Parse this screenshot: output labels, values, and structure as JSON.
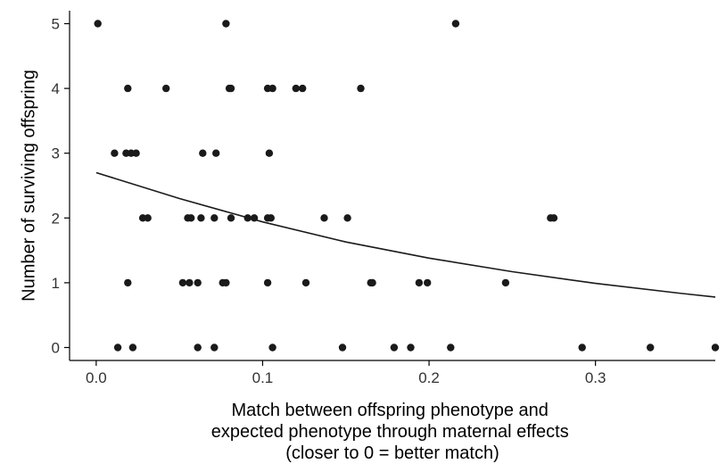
{
  "chart_data": {
    "type": "scatter",
    "title": "",
    "xlabel_lines": [
      "Match between offspring phenotype and",
      "expected phenotype through maternal effects",
      "(closer to 0 = better match)"
    ],
    "ylabel": "Number of surviving offspring",
    "xlim": [
      -0.016,
      0.372
    ],
    "ylim": [
      -0.2,
      5.2
    ],
    "xticks": [
      0.0,
      0.1,
      0.2,
      0.3
    ],
    "xtick_labels": [
      "0.0",
      "0.1",
      "0.2",
      "0.3"
    ],
    "yticks": [
      0,
      1,
      2,
      3,
      4,
      5
    ],
    "ytick_labels": [
      "0",
      "1",
      "2",
      "3",
      "4",
      "5"
    ],
    "grid": false,
    "legend": "none",
    "point_color": "#1a1a1a",
    "line_color": "#1a1a1a",
    "points": [
      {
        "x": 0.001,
        "y": 5
      },
      {
        "x": 0.078,
        "y": 5
      },
      {
        "x": 0.216,
        "y": 5
      },
      {
        "x": 0.019,
        "y": 4
      },
      {
        "x": 0.042,
        "y": 4
      },
      {
        "x": 0.08,
        "y": 4
      },
      {
        "x": 0.081,
        "y": 4
      },
      {
        "x": 0.103,
        "y": 4
      },
      {
        "x": 0.106,
        "y": 4
      },
      {
        "x": 0.12,
        "y": 4
      },
      {
        "x": 0.124,
        "y": 4
      },
      {
        "x": 0.159,
        "y": 4
      },
      {
        "x": 0.011,
        "y": 3
      },
      {
        "x": 0.018,
        "y": 3
      },
      {
        "x": 0.021,
        "y": 3
      },
      {
        "x": 0.024,
        "y": 3
      },
      {
        "x": 0.064,
        "y": 3
      },
      {
        "x": 0.072,
        "y": 3
      },
      {
        "x": 0.104,
        "y": 3
      },
      {
        "x": 0.028,
        "y": 2
      },
      {
        "x": 0.031,
        "y": 2
      },
      {
        "x": 0.055,
        "y": 2
      },
      {
        "x": 0.057,
        "y": 2
      },
      {
        "x": 0.063,
        "y": 2
      },
      {
        "x": 0.071,
        "y": 2
      },
      {
        "x": 0.081,
        "y": 2
      },
      {
        "x": 0.091,
        "y": 2
      },
      {
        "x": 0.095,
        "y": 2
      },
      {
        "x": 0.103,
        "y": 2
      },
      {
        "x": 0.105,
        "y": 2
      },
      {
        "x": 0.137,
        "y": 2
      },
      {
        "x": 0.151,
        "y": 2
      },
      {
        "x": 0.273,
        "y": 2
      },
      {
        "x": 0.275,
        "y": 2
      },
      {
        "x": 0.019,
        "y": 1
      },
      {
        "x": 0.052,
        "y": 1
      },
      {
        "x": 0.056,
        "y": 1
      },
      {
        "x": 0.061,
        "y": 1
      },
      {
        "x": 0.076,
        "y": 1
      },
      {
        "x": 0.078,
        "y": 1
      },
      {
        "x": 0.103,
        "y": 1
      },
      {
        "x": 0.126,
        "y": 1
      },
      {
        "x": 0.165,
        "y": 1
      },
      {
        "x": 0.166,
        "y": 1
      },
      {
        "x": 0.194,
        "y": 1
      },
      {
        "x": 0.199,
        "y": 1
      },
      {
        "x": 0.246,
        "y": 1
      },
      {
        "x": 0.013,
        "y": 0
      },
      {
        "x": 0.022,
        "y": 0
      },
      {
        "x": 0.061,
        "y": 0
      },
      {
        "x": 0.071,
        "y": 0
      },
      {
        "x": 0.106,
        "y": 0
      },
      {
        "x": 0.148,
        "y": 0
      },
      {
        "x": 0.179,
        "y": 0
      },
      {
        "x": 0.189,
        "y": 0
      },
      {
        "x": 0.213,
        "y": 0
      },
      {
        "x": 0.292,
        "y": 0
      },
      {
        "x": 0.333,
        "y": 0
      },
      {
        "x": 0.372,
        "y": 0
      }
    ],
    "fit_curve": {
      "x": [
        0.0,
        0.05,
        0.1,
        0.15,
        0.2,
        0.25,
        0.3,
        0.35,
        0.372
      ],
      "y": [
        2.7,
        2.3,
        1.94,
        1.63,
        1.38,
        1.17,
        0.99,
        0.84,
        0.78
      ]
    }
  }
}
